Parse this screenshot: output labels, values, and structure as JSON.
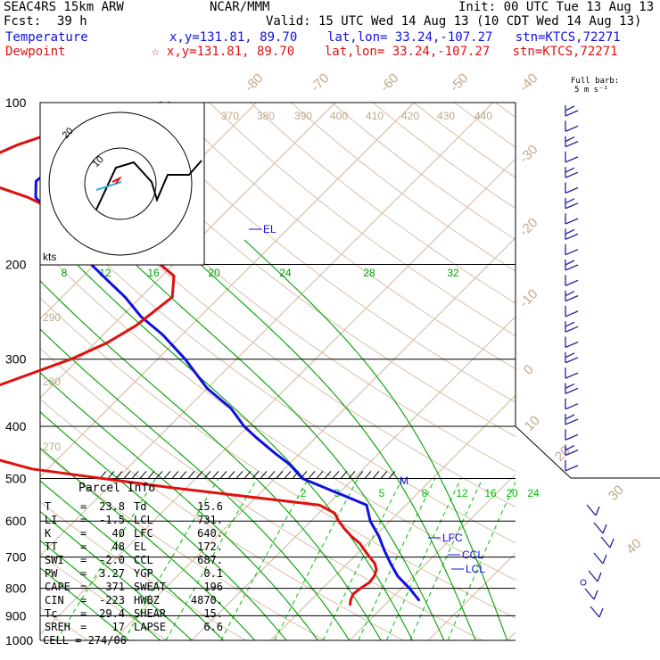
{
  "header": {
    "model": "SEAC4RS 15km ARW",
    "org": "NCAR/MMM",
    "init": "Init: 00 UTC Tue 13 Aug 13",
    "fcst_label": "Fcst:",
    "fcst_value": "39 h",
    "valid": "Valid: 15 UTC Wed 14 Aug 13 (10 CDT Wed 14 Aug 13)",
    "temp_label": "Temperature",
    "temp_info": "x,y=131.81, 89.70    lat,lon= 33.24,-107.27   stn=KTCS,72271",
    "dew_label": "Dewpoint",
    "dew_info": "☆ x,y=131.81, 89.70    lat,lon= 33.24,-107.27   stn=KTCS,72271"
  },
  "barb_key": {
    "line1": "Full barb:",
    "line2": "5 m s⁻¹"
  },
  "hodograph": {
    "units": "kts",
    "ring_labels": [
      "10",
      "20"
    ]
  },
  "parcel_info": {
    "title": "Parcel Info",
    "rows": [
      [
        "T  ",
        "23.8",
        "Td ",
        "15.6"
      ],
      [
        "LI ",
        "-1.5",
        "LCL",
        "731."
      ],
      [
        "K  ",
        "40",
        "LFC",
        "640."
      ],
      [
        "TT ",
        "48",
        "EL ",
        "172."
      ],
      [
        "SWI",
        "-2.0",
        "CCL",
        "687."
      ],
      [
        "PW ",
        "3.27",
        "YGP",
        "0.1"
      ],
      [
        "CAPE",
        "371",
        "SWEAT",
        "196"
      ],
      [
        "CIN",
        "-223",
        "HWBZ",
        "4870."
      ],
      [
        "Tc ",
        "29.4",
        "SHEAR",
        "15."
      ],
      [
        "SREH",
        "17",
        "LAPSE",
        "6.6"
      ]
    ],
    "cell": "CELL = 274/06"
  },
  "colors": {
    "temperature": "#1010e0",
    "dewpoint": "#e01010",
    "isotherm": "#d8c0a8",
    "theta_label": "#c0a888",
    "moist_adiabat": "#00a000",
    "mixing_ratio": "#00c000",
    "grid": "#000000"
  },
  "chart_data": {
    "type": "line",
    "chart_kind": "skew-T log-P sounding",
    "y_axis": {
      "label": "",
      "scale": "log",
      "ylim": [
        1000,
        100
      ],
      "ticks": [
        100,
        200,
        300,
        400,
        500,
        600,
        700,
        800,
        900,
        1000
      ]
    },
    "isotherm_labels": [
      "-80",
      "-70",
      "-60",
      "-50",
      "-40",
      "-30",
      "-20",
      "-10",
      "0",
      "10",
      "20",
      "30",
      "40"
    ],
    "isotherm_label_values": [
      -80,
      -70,
      -60,
      -50,
      -40,
      -30,
      -20,
      -10,
      0,
      10,
      20,
      30,
      40
    ],
    "theta_labels": [
      "370",
      "380",
      "390",
      "400",
      "410",
      "420",
      "430",
      "440"
    ],
    "theta_labels_left": [
      "290",
      "280",
      "270"
    ],
    "moist_adiabat_labels": [
      "8",
      "12",
      "16",
      "20",
      "24",
      "28",
      "32"
    ],
    "mixing_ratio_labels": [
      "2",
      "3",
      "5",
      "8",
      "12",
      "16",
      "20",
      "24"
    ],
    "level_labels": [
      {
        "text": "EL",
        "p": 172
      },
      {
        "text": "LFC",
        "p": 640
      },
      {
        "text": "CCL",
        "p": 687
      },
      {
        "text": "LCL",
        "p": 731
      },
      {
        "text": "M",
        "p": 500
      }
    ],
    "series": [
      {
        "name": "Temperature",
        "p": [
          843,
          800,
          760,
          720,
          680,
          640,
          600,
          560,
          500,
          470,
          450,
          420,
          400,
          370,
          340,
          300,
          270,
          250,
          230,
          210,
          190,
          172,
          160,
          150,
          140,
          120,
          110,
          100
        ],
        "t": [
          23.8,
          21.0,
          18.0,
          15.5,
          13.0,
          10.5,
          7.5,
          5.0,
          -6.5,
          -10.0,
          -13.0,
          -17.5,
          -20.5,
          -24.5,
          -30.0,
          -36.5,
          -42.5,
          -47.5,
          -52.0,
          -57.5,
          -63.5,
          -69.0,
          -72.5,
          -76.0,
          -78.0,
          -77.0,
          -76.0,
          -71.0
        ]
      },
      {
        "name": "Dewpoint",
        "p": [
          860,
          840,
          820,
          800,
          780,
          760,
          740,
          720,
          700,
          680,
          660,
          640,
          620,
          600,
          580,
          560,
          520,
          480,
          450,
          420,
          405,
          380,
          360,
          340,
          300,
          280,
          260,
          230,
          210,
          190,
          175,
          150,
          140,
          130,
          120,
          110,
          100
        ],
        "t": [
          15.6,
          15.0,
          14.6,
          14.8,
          15.2,
          15.0,
          14.5,
          13.5,
          12.0,
          10.5,
          9.0,
          7.0,
          5.2,
          3.5,
          2.0,
          -1.0,
          -22.0,
          -42.0,
          -51.0,
          -58.0,
          -62.0,
          -62.0,
          -60.0,
          -57.5,
          -51.0,
          -48.5,
          -47.0,
          -46.0,
          -48.5,
          -55.0,
          -63.0,
          -77.0,
          -85.0,
          -88.0,
          -85.0,
          -80.0,
          -72.0
        ]
      }
    ]
  }
}
